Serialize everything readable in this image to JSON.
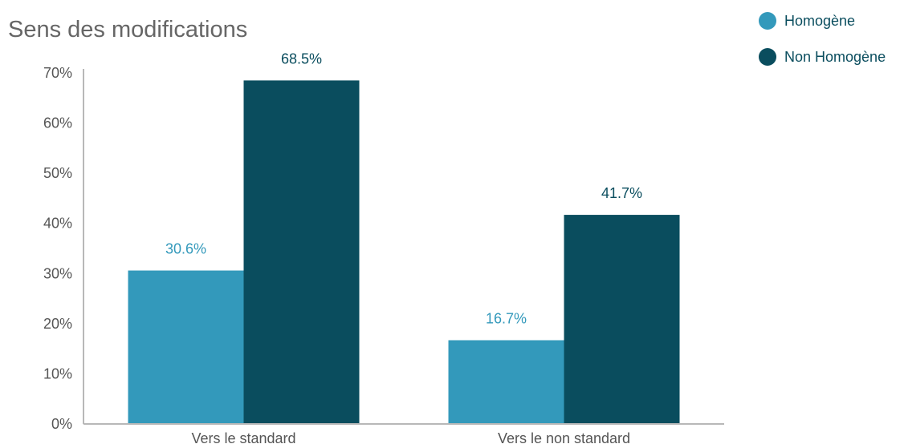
{
  "chart_data": {
    "type": "bar",
    "title": "Sens des modifications",
    "categories": [
      "Vers le standard",
      "Vers le non standard"
    ],
    "series": [
      {
        "name": "Homogène",
        "values": [
          30.6,
          16.7
        ],
        "labels": [
          "30.6%",
          "16.7%"
        ],
        "color": "#3399bb"
      },
      {
        "name": "Non Homogène",
        "values": [
          68.5,
          41.7
        ],
        "labels": [
          "68.5%",
          "41.7%"
        ],
        "color": "#0a4d5e"
      }
    ],
    "y_ticks": [
      "0%",
      "10%",
      "20%",
      "30%",
      "40%",
      "50%",
      "60%",
      "70%"
    ],
    "y_tick_values": [
      0,
      10,
      20,
      30,
      40,
      50,
      60,
      70
    ],
    "ylim": [
      0,
      70
    ],
    "grid": false,
    "legend_position": "top-right"
  }
}
